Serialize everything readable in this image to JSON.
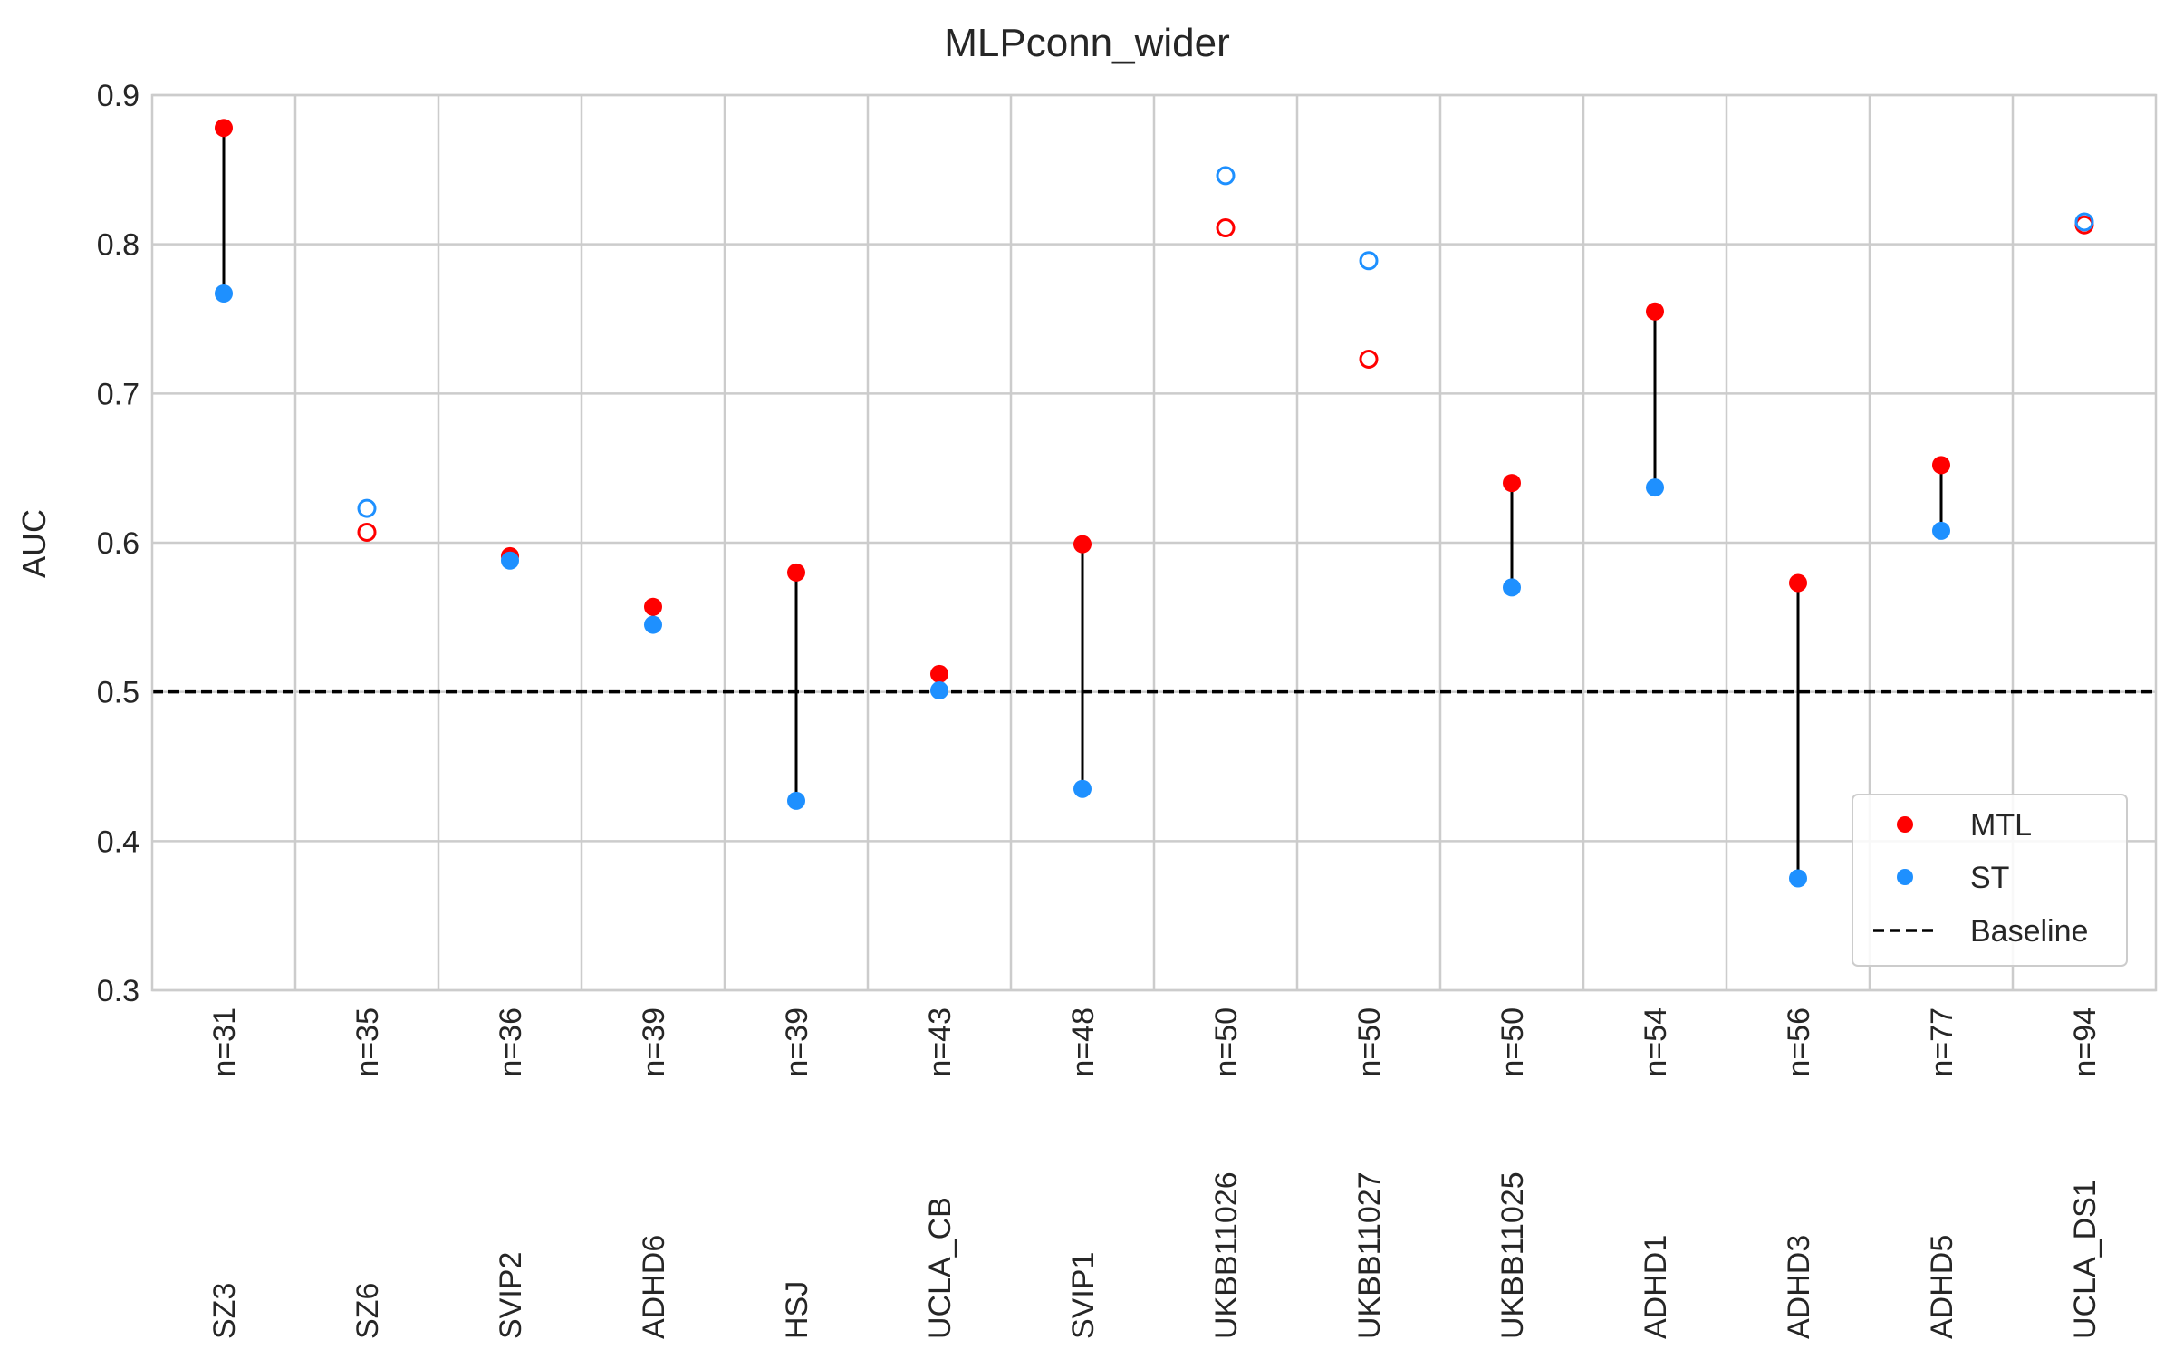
{
  "chart_data": {
    "type": "scatter",
    "title": "MLPconn_wider",
    "xlabel": "",
    "ylabel": "AUC",
    "ylim": [
      0.3,
      0.9
    ],
    "yticks": [
      0.3,
      0.4,
      0.5,
      0.6,
      0.7,
      0.8,
      0.9
    ],
    "grid": true,
    "baseline": 0.5,
    "categories": [
      {
        "name": "SZ3",
        "n": "n=31",
        "mtl": 0.878,
        "st": 0.767,
        "significant": true
      },
      {
        "name": "SZ6",
        "n": "n=35",
        "mtl": 0.607,
        "st": 0.623,
        "significant": false
      },
      {
        "name": "SVIP2",
        "n": "n=36",
        "mtl": 0.591,
        "st": 0.588,
        "significant": true
      },
      {
        "name": "ADHD6",
        "n": "n=39",
        "mtl": 0.557,
        "st": 0.545,
        "significant": true
      },
      {
        "name": "HSJ",
        "n": "n=39",
        "mtl": 0.58,
        "st": 0.427,
        "significant": true
      },
      {
        "name": "UCLA_CB",
        "n": "n=43",
        "mtl": 0.512,
        "st": 0.501,
        "significant": true
      },
      {
        "name": "SVIP1",
        "n": "n=48",
        "mtl": 0.599,
        "st": 0.435,
        "significant": true
      },
      {
        "name": "UKBB11026",
        "n": "n=50",
        "mtl": 0.811,
        "st": 0.846,
        "significant": false
      },
      {
        "name": "UKBB11027",
        "n": "n=50",
        "mtl": 0.723,
        "st": 0.789,
        "significant": false
      },
      {
        "name": "UKBB11025",
        "n": "n=50",
        "mtl": 0.64,
        "st": 0.57,
        "significant": true
      },
      {
        "name": "ADHD1",
        "n": "n=54",
        "mtl": 0.755,
        "st": 0.637,
        "significant": true
      },
      {
        "name": "ADHD3",
        "n": "n=56",
        "mtl": 0.573,
        "st": 0.375,
        "significant": true
      },
      {
        "name": "ADHD5",
        "n": "n=77",
        "mtl": 0.652,
        "st": 0.608,
        "significant": true
      },
      {
        "name": "UCLA_DS1",
        "n": "n=94",
        "mtl": 0.813,
        "st": 0.815,
        "significant": false
      }
    ],
    "series": [
      {
        "name": "MTL",
        "color": "#ff0000"
      },
      {
        "name": "ST",
        "color": "#1e90ff"
      }
    ],
    "legend": {
      "placement": "lower-right",
      "entries": [
        "MTL",
        "ST",
        "Baseline"
      ]
    },
    "colors": {
      "mtl": "#ff0000",
      "st": "#1e90ff",
      "grid": "#cccccc",
      "connector": "#000000",
      "baseline": "#000000"
    }
  }
}
